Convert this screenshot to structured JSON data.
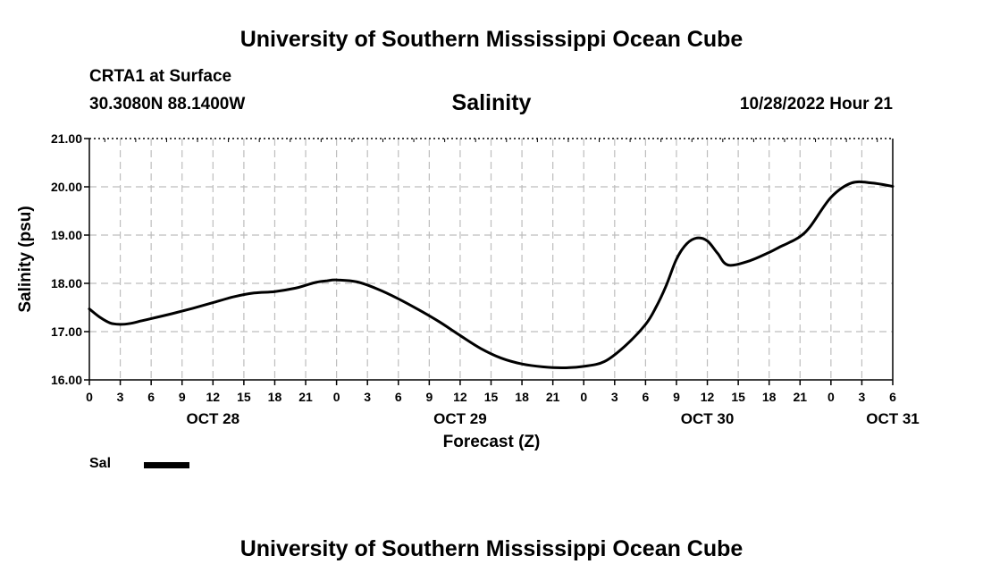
{
  "page": {
    "title_top": "University of Southern Mississippi Ocean Cube",
    "title_bottom": "University of Southern Mississippi Ocean Cube",
    "station": "CRTA1 at Surface",
    "coords": "30.3080N  88.1400W",
    "timestamp": "10/28/2022 Hour 21"
  },
  "chart_data": {
    "type": "line",
    "title": "Salinity",
    "xlabel": "Forecast (Z)",
    "ylabel": "Salinity (psu)",
    "ylim": [
      16.0,
      21.0
    ],
    "yticks": [
      "16.00",
      "17.00",
      "18.00",
      "19.00",
      "20.00",
      "21.00"
    ],
    "xlim_hours": [
      0,
      78
    ],
    "xtick_labels": [
      "0",
      "3",
      "6",
      "9",
      "12",
      "15",
      "18",
      "21",
      "0",
      "3",
      "6",
      "9",
      "12",
      "15",
      "18",
      "21",
      "0",
      "3",
      "6",
      "9",
      "12",
      "15",
      "18",
      "21",
      "0",
      "3",
      "6"
    ],
    "date_labels": [
      {
        "label": "OCT 28",
        "hour": 12
      },
      {
        "label": "OCT 29",
        "hour": 36
      },
      {
        "label": "OCT 30",
        "hour": 60
      },
      {
        "label": "OCT 31",
        "hour": 78
      }
    ],
    "grid": true,
    "legend": "bottom-left",
    "series": [
      {
        "name": "Sal",
        "color": "#000000",
        "x_hours": [
          0,
          1,
          2,
          3,
          4,
          5,
          6,
          8,
          10,
          12,
          14,
          16,
          18,
          20,
          21,
          22,
          23,
          24,
          26,
          28,
          30,
          32,
          34,
          36,
          38,
          40,
          42,
          44,
          46,
          48,
          50,
          52,
          54,
          55,
          56,
          57,
          58,
          59,
          60,
          61,
          62,
          64,
          66,
          67,
          68,
          69,
          70,
          72,
          74,
          76,
          78
        ],
        "values": [
          17.47,
          17.3,
          17.18,
          17.15,
          17.17,
          17.22,
          17.27,
          17.37,
          17.48,
          17.6,
          17.72,
          17.8,
          17.83,
          17.9,
          17.96,
          18.02,
          18.05,
          18.07,
          18.03,
          17.88,
          17.68,
          17.45,
          17.2,
          16.92,
          16.65,
          16.45,
          16.33,
          16.27,
          16.25,
          16.28,
          16.38,
          16.7,
          17.15,
          17.5,
          17.95,
          18.5,
          18.82,
          18.94,
          18.88,
          18.62,
          18.38,
          18.46,
          18.64,
          18.75,
          18.85,
          18.97,
          19.18,
          19.78,
          20.08,
          20.08,
          20.01
        ]
      }
    ]
  }
}
